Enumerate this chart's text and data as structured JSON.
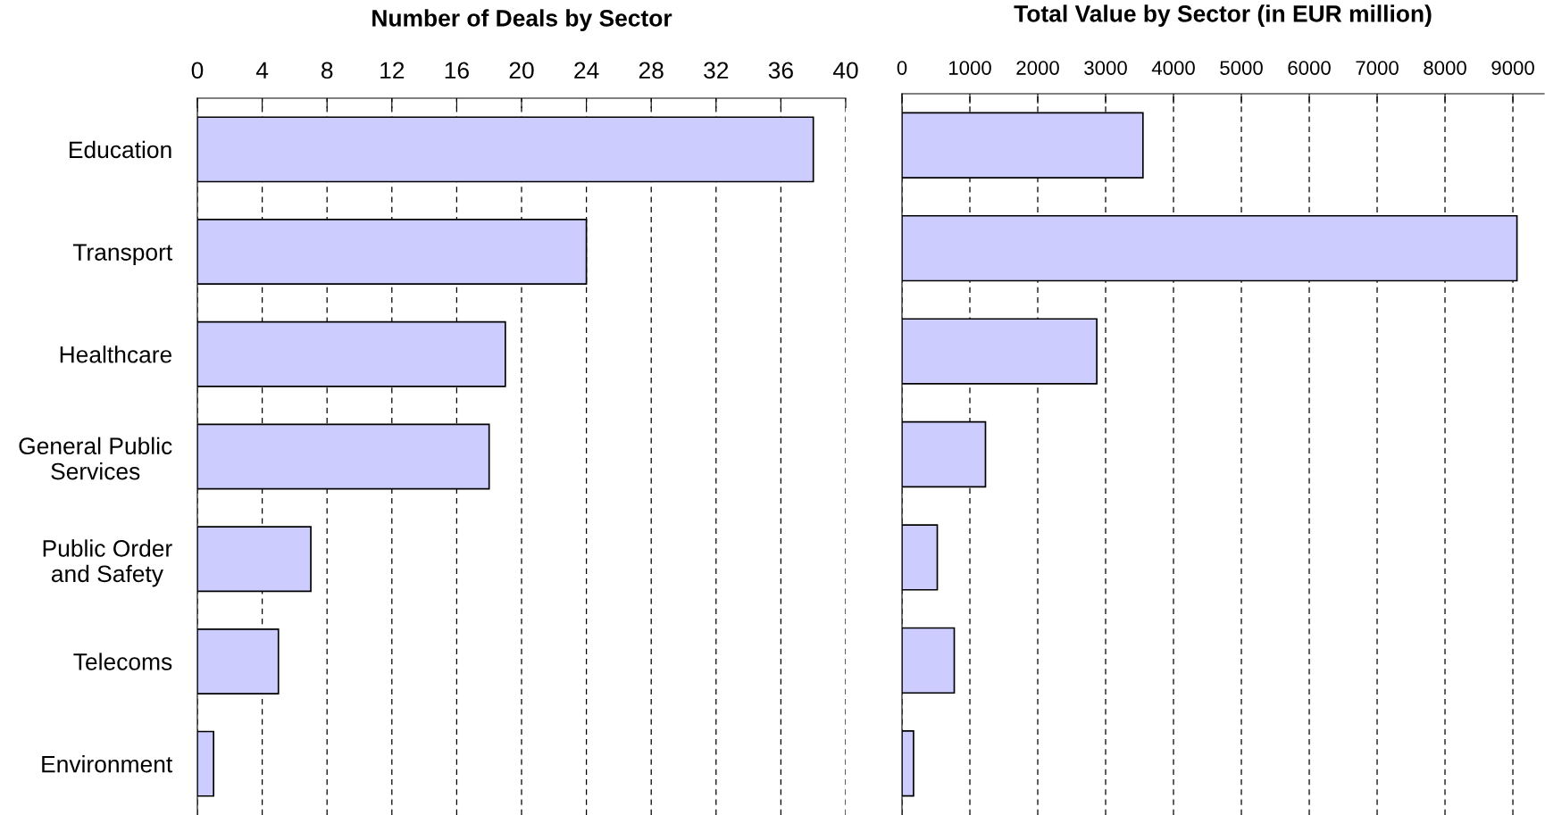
{
  "chart_data": [
    {
      "type": "bar",
      "orientation": "horizontal",
      "title": "Number of Deals by Sector",
      "categories": [
        "Education",
        "Transport",
        "Healthcare",
        "General Public\nServices",
        "Public Order\nand Safety",
        "Telecoms",
        "Environment"
      ],
      "values": [
        38,
        24,
        19,
        18,
        7,
        5,
        1
      ],
      "color": "#ccccff",
      "xlim": [
        0,
        40
      ],
      "xticks": [
        0,
        4,
        8,
        12,
        16,
        20,
        24,
        28,
        32,
        36,
        40
      ],
      "grid": "x"
    },
    {
      "type": "bar",
      "orientation": "horizontal",
      "title": "Total Value by Sector (in EUR million)",
      "categories": [
        null,
        null,
        null,
        null,
        null,
        null,
        null
      ],
      "values": [
        3550,
        9060,
        2870,
        1230,
        520,
        770,
        170
      ],
      "color": "#ccccff",
      "xlim": [
        0,
        9460
      ],
      "xticks": [
        0,
        1000,
        2000,
        3000,
        4000,
        5000,
        6000,
        7000,
        8000,
        9000
      ],
      "grid": "x"
    }
  ]
}
